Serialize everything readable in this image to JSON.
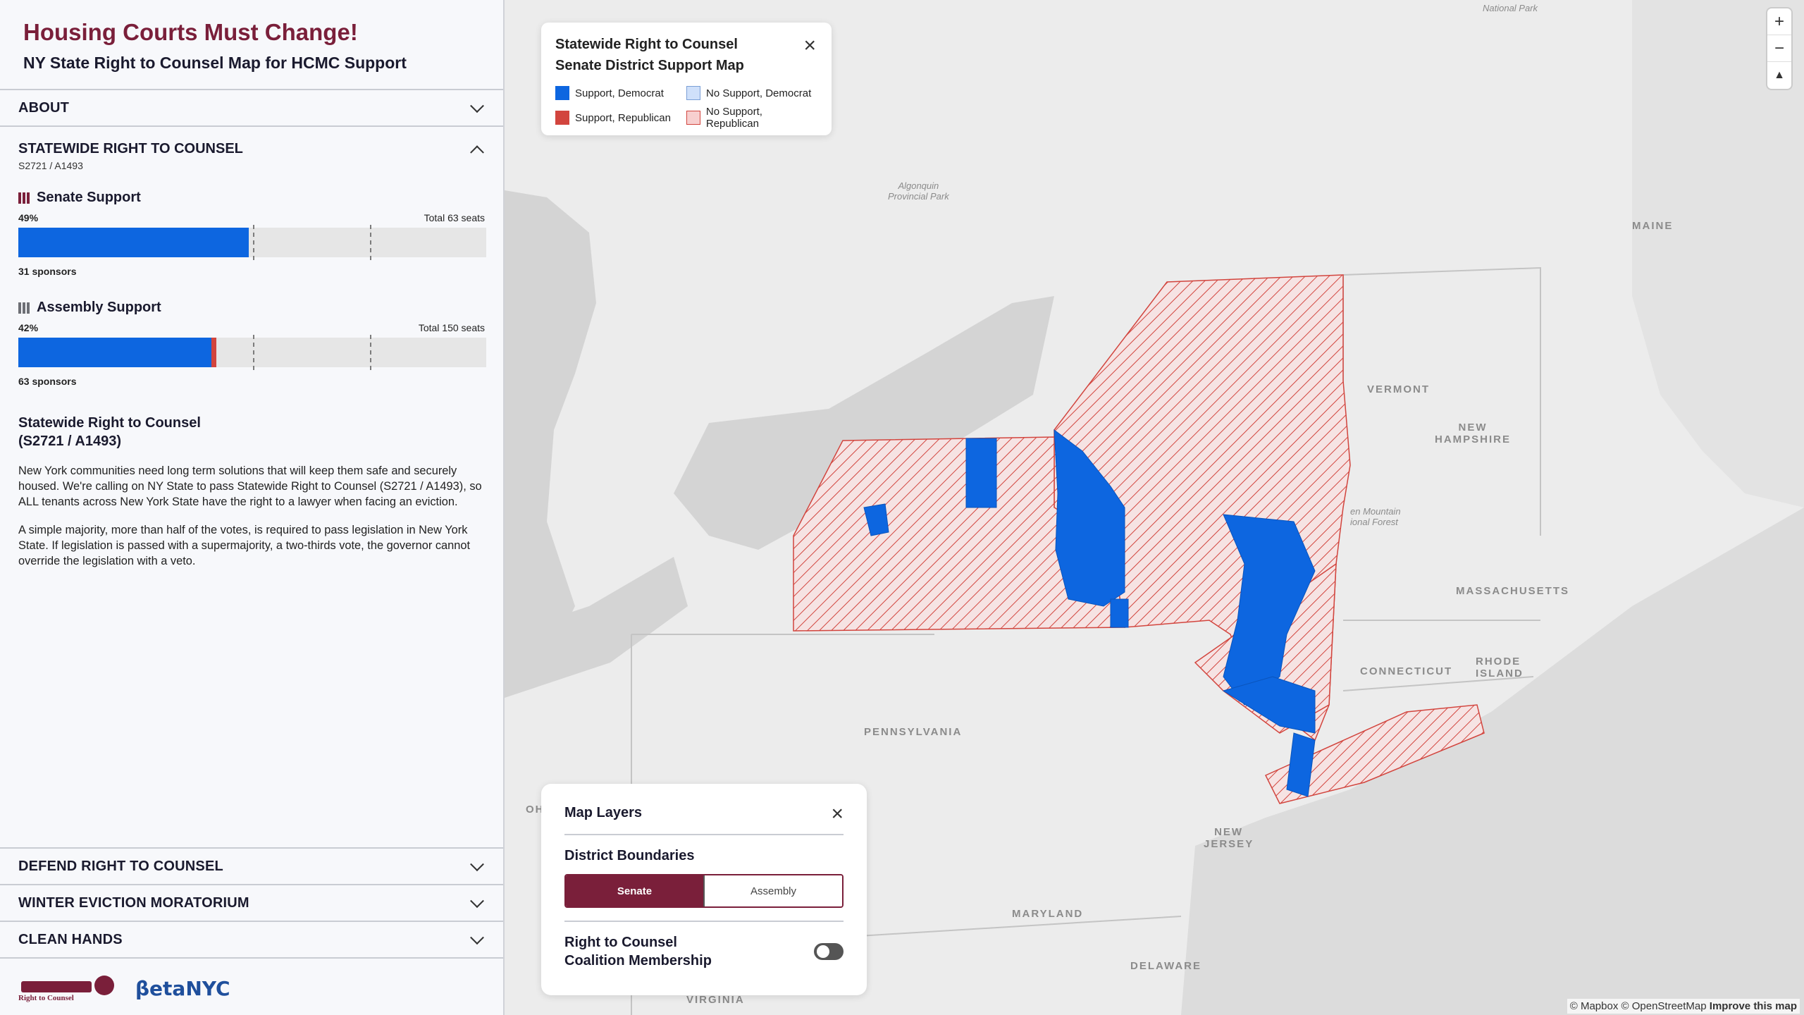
{
  "header": {
    "title": "Housing Courts Must Change!",
    "subtitle": "NY State Right to Counsel Map for HCMC Support"
  },
  "accordion": {
    "about": "ABOUT",
    "statewide": {
      "title": "STATEWIDE RIGHT TO COUNSEL",
      "code": "S2721 / A1493"
    },
    "defend": "DEFEND RIGHT TO COUNSEL",
    "winter": "WINTER EVICTION MORATORIUM",
    "clean": "CLEAN HANDS"
  },
  "senate": {
    "label": "Senate Support",
    "percent_text": "49%",
    "total_text": "Total 63 seats",
    "sponsors_text": "31 sponsors",
    "dem_fraction": 0.492,
    "rep_fraction": 0.0
  },
  "assembly": {
    "label": "Assembly Support",
    "percent_text": "42%",
    "total_text": "Total 150 seats",
    "sponsors_text": "63 sponsors",
    "dem_fraction": 0.413,
    "rep_fraction": 0.01
  },
  "description": {
    "title_line1": "Statewide Right to Counsel",
    "title_line2": "(S2721 / A1493)",
    "p1": "New York communities need long term solutions that will keep them safe and securely housed. We're calling on NY State to pass Statewide Right to Counsel (S2721 / A1493), so ALL tenants across New York State have the right to a lawyer when facing an eviction.",
    "p2": "A simple majority, more than half of the votes, is required to pass legislation in New York State. If legislation is passed with a supermajority, a two-thirds vote, the governor cannot override the legislation with a veto."
  },
  "footer": {
    "logo_rtc": "Right to Counsel",
    "logo_beta": "βetaNYC"
  },
  "legend": {
    "title_line1": "Statewide Right to Counsel",
    "title_line2": "Senate District Support Map",
    "close": "×",
    "items": [
      {
        "label": "Support, Democrat",
        "color": "#0d66e0"
      },
      {
        "label": "No Support, Democrat",
        "color": "#cfe0fa"
      },
      {
        "label": "Support, Republican",
        "color": "#d2453e"
      },
      {
        "label": "No Support, Republican",
        "color": "#f7cfcf"
      }
    ]
  },
  "layers": {
    "title": "Map Layers",
    "close": "×",
    "district_label": "District Boundaries",
    "senate_btn": "Senate",
    "assembly_btn": "Assembly",
    "coalition_line1": "Right to Counsel",
    "coalition_line2": "Coalition Membership"
  },
  "map": {
    "labels": {
      "national_park": "National Park",
      "algonquin1": "Algonquin",
      "algonquin2": "Provincial Park",
      "maine": "MAINE",
      "vermont": "VERMONT",
      "nh1": "NEW",
      "nh2": "HAMPSHIRE",
      "green1": "en Mountain",
      "green2": "ional Forest",
      "mass": "MASSACHUSETTS",
      "conn": "CONNECTICUT",
      "ri1": "RHODE",
      "ri2": "ISLAND",
      "penn": "PENNSYLVANIA",
      "nj1": "NEW",
      "nj2": "JERSEY",
      "maryland": "MARYLAND",
      "delaware": "DELAWARE",
      "virginia": "VIRGINIA",
      "oh": "OH"
    },
    "zoom_in": "+",
    "zoom_out": "−",
    "compass": "▲",
    "attribution_main": "© Mapbox © OpenStreetMap",
    "attribution_link": "Improve this map"
  }
}
